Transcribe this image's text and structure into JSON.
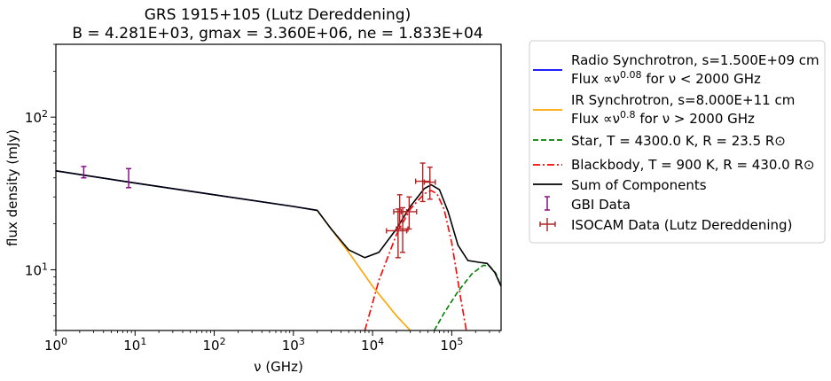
{
  "chart_data": {
    "type": "line",
    "title": "GRS 1915+105 (Lutz Dereddening)",
    "subtitle": "B = 4.281E+03, gmax = 3.360E+06, ne = 1.833E+04",
    "xlabel": "ν (GHz)",
    "ylabel": "flux density (mJy)",
    "xscale": "log",
    "yscale": "log",
    "xlim": [
      1,
      420000
    ],
    "ylim": [
      4,
      300
    ],
    "x_ticks": [
      {
        "value": 1,
        "label": "10^0"
      },
      {
        "value": 10,
        "label": "10^1"
      },
      {
        "value": 100,
        "label": "10^2"
      },
      {
        "value": 1000,
        "label": "10^3"
      },
      {
        "value": 10000,
        "label": "10^4"
      },
      {
        "value": 100000,
        "label": "10^5"
      }
    ],
    "y_ticks": [
      {
        "value": 10,
        "label": "10^1"
      },
      {
        "value": 100,
        "label": "10^2"
      }
    ],
    "legend_position": "outside-right",
    "series": [
      {
        "name": "Radio Synchrotron, s=1.500E+09 cm",
        "note": "Flux ∝ν^0.08 for ν < 2000 GHz",
        "style": "solid",
        "color": "#0000ff",
        "x": [
          1,
          10,
          100,
          1000,
          2000
        ],
        "y": [
          44.5,
          37.0,
          31.0,
          26.0,
          24.5
        ]
      },
      {
        "name": "IR Synchrotron, s=8.000E+11 cm",
        "note": "Flux ∝ν^0.8 for ν > 2000 GHz",
        "style": "solid",
        "color": "#ffa500",
        "x": [
          2000,
          5000,
          10000,
          20000,
          30000
        ],
        "y": [
          24.5,
          13.0,
          7.8,
          5.0,
          4.0
        ]
      },
      {
        "name": "Star, T = 4300.0 K, R = 23.5 R⊙",
        "style": "dashed",
        "color": "#008000",
        "x": [
          60000,
          80000,
          120000,
          180000,
          250000,
          300000,
          360000,
          420000
        ],
        "y": [
          4.0,
          5.2,
          7.2,
          9.4,
          10.7,
          10.6,
          9.5,
          7.8
        ]
      },
      {
        "name": "Blackbody, T = 900 K, R = 430.0 R⊙",
        "style": "dashdot",
        "color": "#ff0000",
        "x": [
          8000,
          12000,
          20000,
          30000,
          45000,
          55000,
          65000,
          80000,
          100000,
          130000,
          160000
        ],
        "y": [
          4.0,
          8.5,
          17.0,
          25.0,
          31.5,
          33.0,
          31.5,
          25.0,
          15.0,
          6.5,
          3.5
        ]
      },
      {
        "name": "Sum of Components",
        "style": "solid",
        "color": "#000000",
        "x": [
          1,
          10,
          100,
          1000,
          2000,
          3000,
          5000,
          8000,
          12000,
          20000,
          30000,
          45000,
          55000,
          70000,
          90000,
          120000,
          160000,
          220000,
          280000,
          350000,
          420000
        ],
        "y": [
          44.5,
          37.0,
          31.0,
          26.0,
          24.5,
          18.5,
          13.5,
          12.0,
          13.0,
          18.5,
          26.0,
          34.0,
          36.0,
          33.5,
          24.0,
          14.5,
          11.5,
          11.2,
          11.0,
          9.6,
          7.8
        ]
      }
    ],
    "errorbar_series": [
      {
        "name": "GBI Data",
        "color": "#800080",
        "points": [
          {
            "x": 2.25,
            "y": 43.0,
            "ylo": 40.0,
            "yhi": 47.5
          },
          {
            "x": 8.3,
            "y": 38.0,
            "ylo": 34.5,
            "yhi": 46.0
          }
        ]
      },
      {
        "name": "ISOCAM Data (Lutz Dereddening)",
        "color": "#b22222",
        "points": [
          {
            "x": 21000,
            "y": 18.0,
            "ylo": 12.0,
            "yhi": 25.0,
            "xlo": 15000,
            "xhi": 27000
          },
          {
            "x": 24000,
            "y": 18.5,
            "ylo": 13.0,
            "yhi": 25.5,
            "xlo": 20000,
            "xhi": 28000
          },
          {
            "x": 22000,
            "y": 24.0,
            "ylo": 18.5,
            "yhi": 31.0,
            "xlo": 18500,
            "xhi": 27000
          },
          {
            "x": 29000,
            "y": 24.0,
            "ylo": 18.5,
            "yhi": 30.0,
            "xlo": 23000,
            "xhi": 36000
          },
          {
            "x": 43000,
            "y": 38.0,
            "ylo": 28.0,
            "yhi": 50.0,
            "xlo": 35000,
            "xhi": 53000
          },
          {
            "x": 53000,
            "y": 37.5,
            "ylo": 29.0,
            "yhi": 47.0,
            "xlo": 45000,
            "xhi": 62000
          }
        ]
      }
    ]
  }
}
